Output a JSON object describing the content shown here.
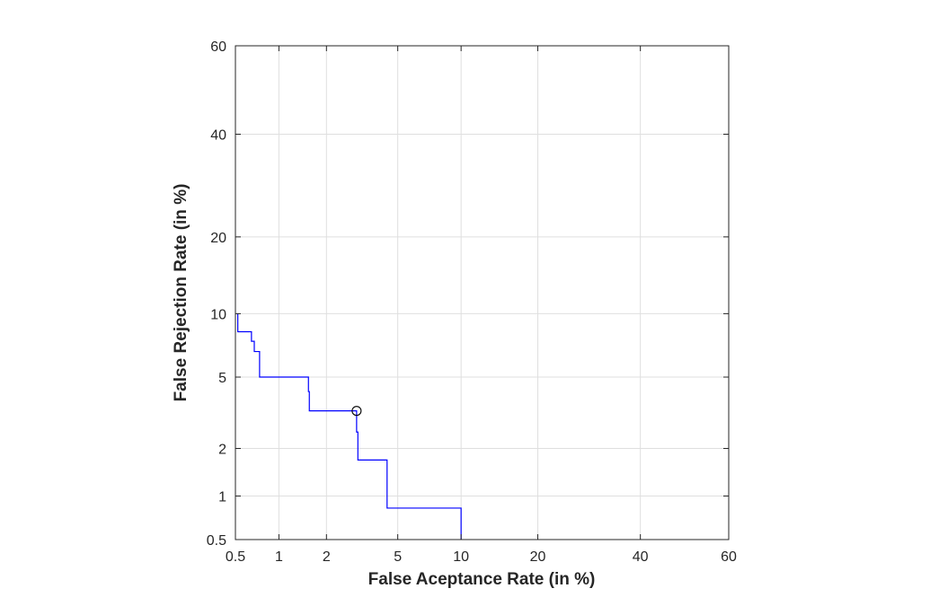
{
  "chart_data": {
    "type": "line",
    "title": "",
    "xlabel": "False Aceptance Rate (in %)",
    "ylabel": "False Rejection Rate (in %)",
    "scale": "normal-deviate (DET)",
    "xlim": [
      0.5,
      60
    ],
    "ylim": [
      0.5,
      60
    ],
    "xticks": [
      0.5,
      1,
      2,
      5,
      10,
      20,
      40,
      60
    ],
    "yticks": [
      0.5,
      1,
      2,
      5,
      10,
      20,
      40,
      60
    ],
    "xtick_labels": [
      "0.5",
      "1",
      "2",
      "5",
      "10",
      "20",
      "40",
      "60"
    ],
    "ytick_labels": [
      "0.5",
      "1",
      "2",
      "5",
      "10",
      "20",
      "40",
      "60"
    ],
    "grid": true,
    "line_color": "#0000ff",
    "series": [
      {
        "points": [
          [
            0.52,
            10.0
          ],
          [
            0.52,
            8.3
          ],
          [
            0.65,
            8.3
          ],
          [
            0.65,
            7.5
          ],
          [
            0.68,
            7.5
          ],
          [
            0.68,
            6.7
          ],
          [
            0.74,
            6.7
          ],
          [
            0.74,
            5.0
          ],
          [
            1.55,
            5.0
          ],
          [
            1.55,
            4.2
          ],
          [
            1.57,
            4.2
          ],
          [
            1.57,
            3.3
          ],
          [
            3.0,
            3.3
          ],
          [
            3.0,
            2.5
          ],
          [
            3.05,
            2.5
          ],
          [
            3.05,
            1.7
          ],
          [
            4.4,
            1.7
          ],
          [
            4.4,
            0.83
          ],
          [
            10.0,
            0.83
          ],
          [
            10.0,
            0.5
          ]
        ]
      }
    ],
    "marker": {
      "x": 3.0,
      "y": 3.3,
      "shape": "circle"
    }
  }
}
